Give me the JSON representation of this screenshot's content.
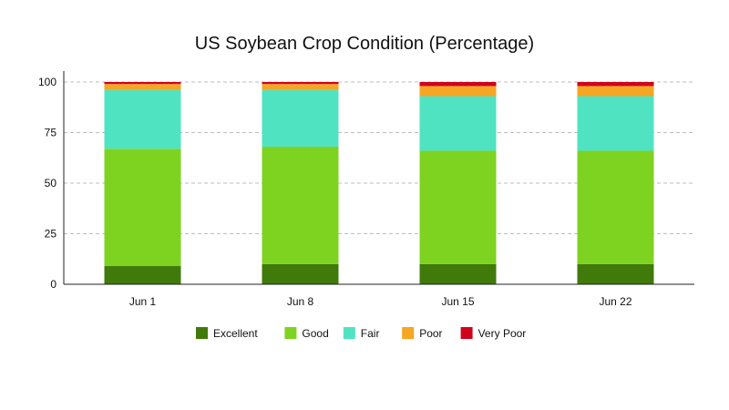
{
  "chart_data": {
    "type": "bar",
    "stacked": true,
    "title": "US Soybean Crop Condition (Percentage)",
    "xlabel": "",
    "ylabel": "",
    "categories": [
      "Jun 1",
      "Jun 8",
      "Jun 15",
      "Jun 22"
    ],
    "ylim": [
      0,
      100
    ],
    "yticks": [
      0,
      25,
      50,
      75,
      100
    ],
    "grid": true,
    "legend_position": "bottom",
    "series": [
      {
        "name": "Excellent",
        "color": "#3f7a0a",
        "values": [
          9,
          10,
          10,
          10
        ]
      },
      {
        "name": "Good",
        "color": "#7ed321",
        "values": [
          58,
          58,
          56,
          56
        ]
      },
      {
        "name": "Fair",
        "color": "#50e3c2",
        "values": [
          29,
          28,
          27,
          27
        ]
      },
      {
        "name": "Poor",
        "color": "#f5a623",
        "values": [
          3,
          3,
          5,
          5
        ]
      },
      {
        "name": "Very Poor",
        "color": "#d0021b",
        "values": [
          1,
          1,
          2,
          2
        ]
      }
    ]
  }
}
